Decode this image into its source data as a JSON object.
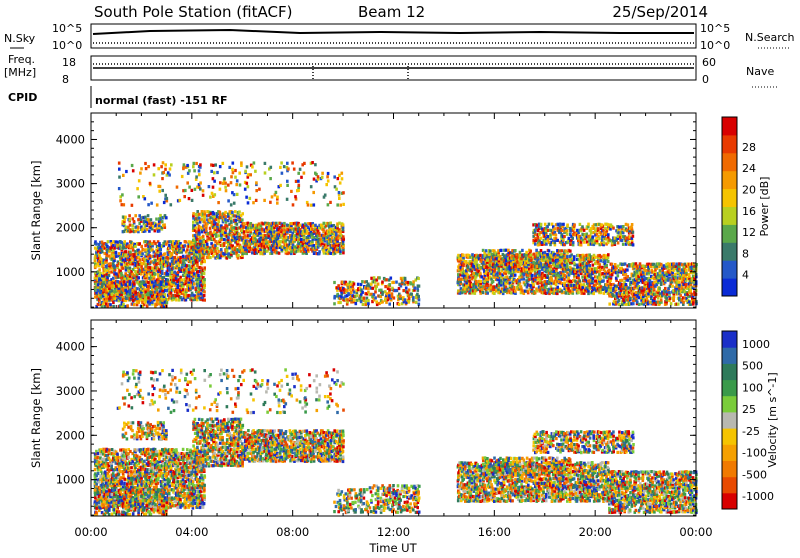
{
  "header": {
    "station": "South Pole Station (fitACF)",
    "beam": "Beam 12",
    "date": "25/Sep/2014"
  },
  "top_panels": {
    "nsky_label": "N.Sky",
    "nsky_ticks": [
      "10^5",
      "10^0"
    ],
    "nsearch_label": "N.Search",
    "nsearch_ticks": [
      "10^5",
      "10^0"
    ],
    "freq_label": "Freq.",
    "freq_unit": "[MHz]",
    "freq_ticks": [
      "18",
      "8"
    ],
    "nave_label": "Nave",
    "nave_ticks": [
      "60",
      "0"
    ],
    "cpid_label": "CPID",
    "cpid_text": "normal (fast) -151 RF"
  },
  "chart_data": [
    {
      "type": "heatmap",
      "name": "power",
      "ylabel": "Slant Range [km]",
      "xlabel": "Time UT",
      "x_ticks": [
        "00:00",
        "04:00",
        "08:00",
        "12:00",
        "16:00",
        "20:00",
        "00:00"
      ],
      "x_range_hours": [
        0,
        24
      ],
      "y_ticks": [
        1000,
        2000,
        3000,
        4000
      ],
      "ylim": [
        180,
        4600
      ],
      "colorbar": {
        "label": "Power [dB]",
        "ticks": [
          "4",
          "8",
          "12",
          "16",
          "20",
          "24",
          "28"
        ],
        "colors": [
          "#0a2bd6",
          "#2458c8",
          "#3a7a6a",
          "#5aa84a",
          "#b8d020",
          "#f5c400",
          "#f59a00",
          "#f06a00",
          "#e83a00",
          "#d80000"
        ]
      }
    },
    {
      "type": "heatmap",
      "name": "velocity",
      "ylabel": "Slant Range [km]",
      "xlabel": "Time UT",
      "x_ticks": [
        "00:00",
        "04:00",
        "08:00",
        "12:00",
        "16:00",
        "20:00",
        "00:00"
      ],
      "x_range_hours": [
        0,
        24
      ],
      "y_ticks": [
        1000,
        2000,
        3000,
        4000
      ],
      "ylim": [
        180,
        4600
      ],
      "colorbar": {
        "label": "Velocity [m s^-1]",
        "ticks": [
          "1000",
          "500",
          "100",
          "25",
          "-25",
          "-100",
          "-500",
          "-1000"
        ],
        "colors": [
          "#1a2fc8",
          "#2f6aa8",
          "#2e7a5a",
          "#3a9a4a",
          "#7acc3a",
          "#b8b8b0",
          "#f5c400",
          "#f5a000",
          "#f07a00",
          "#e84a00",
          "#d80000"
        ]
      }
    }
  ],
  "colors": {
    "background": "#ffffff",
    "axis": "#000000"
  }
}
